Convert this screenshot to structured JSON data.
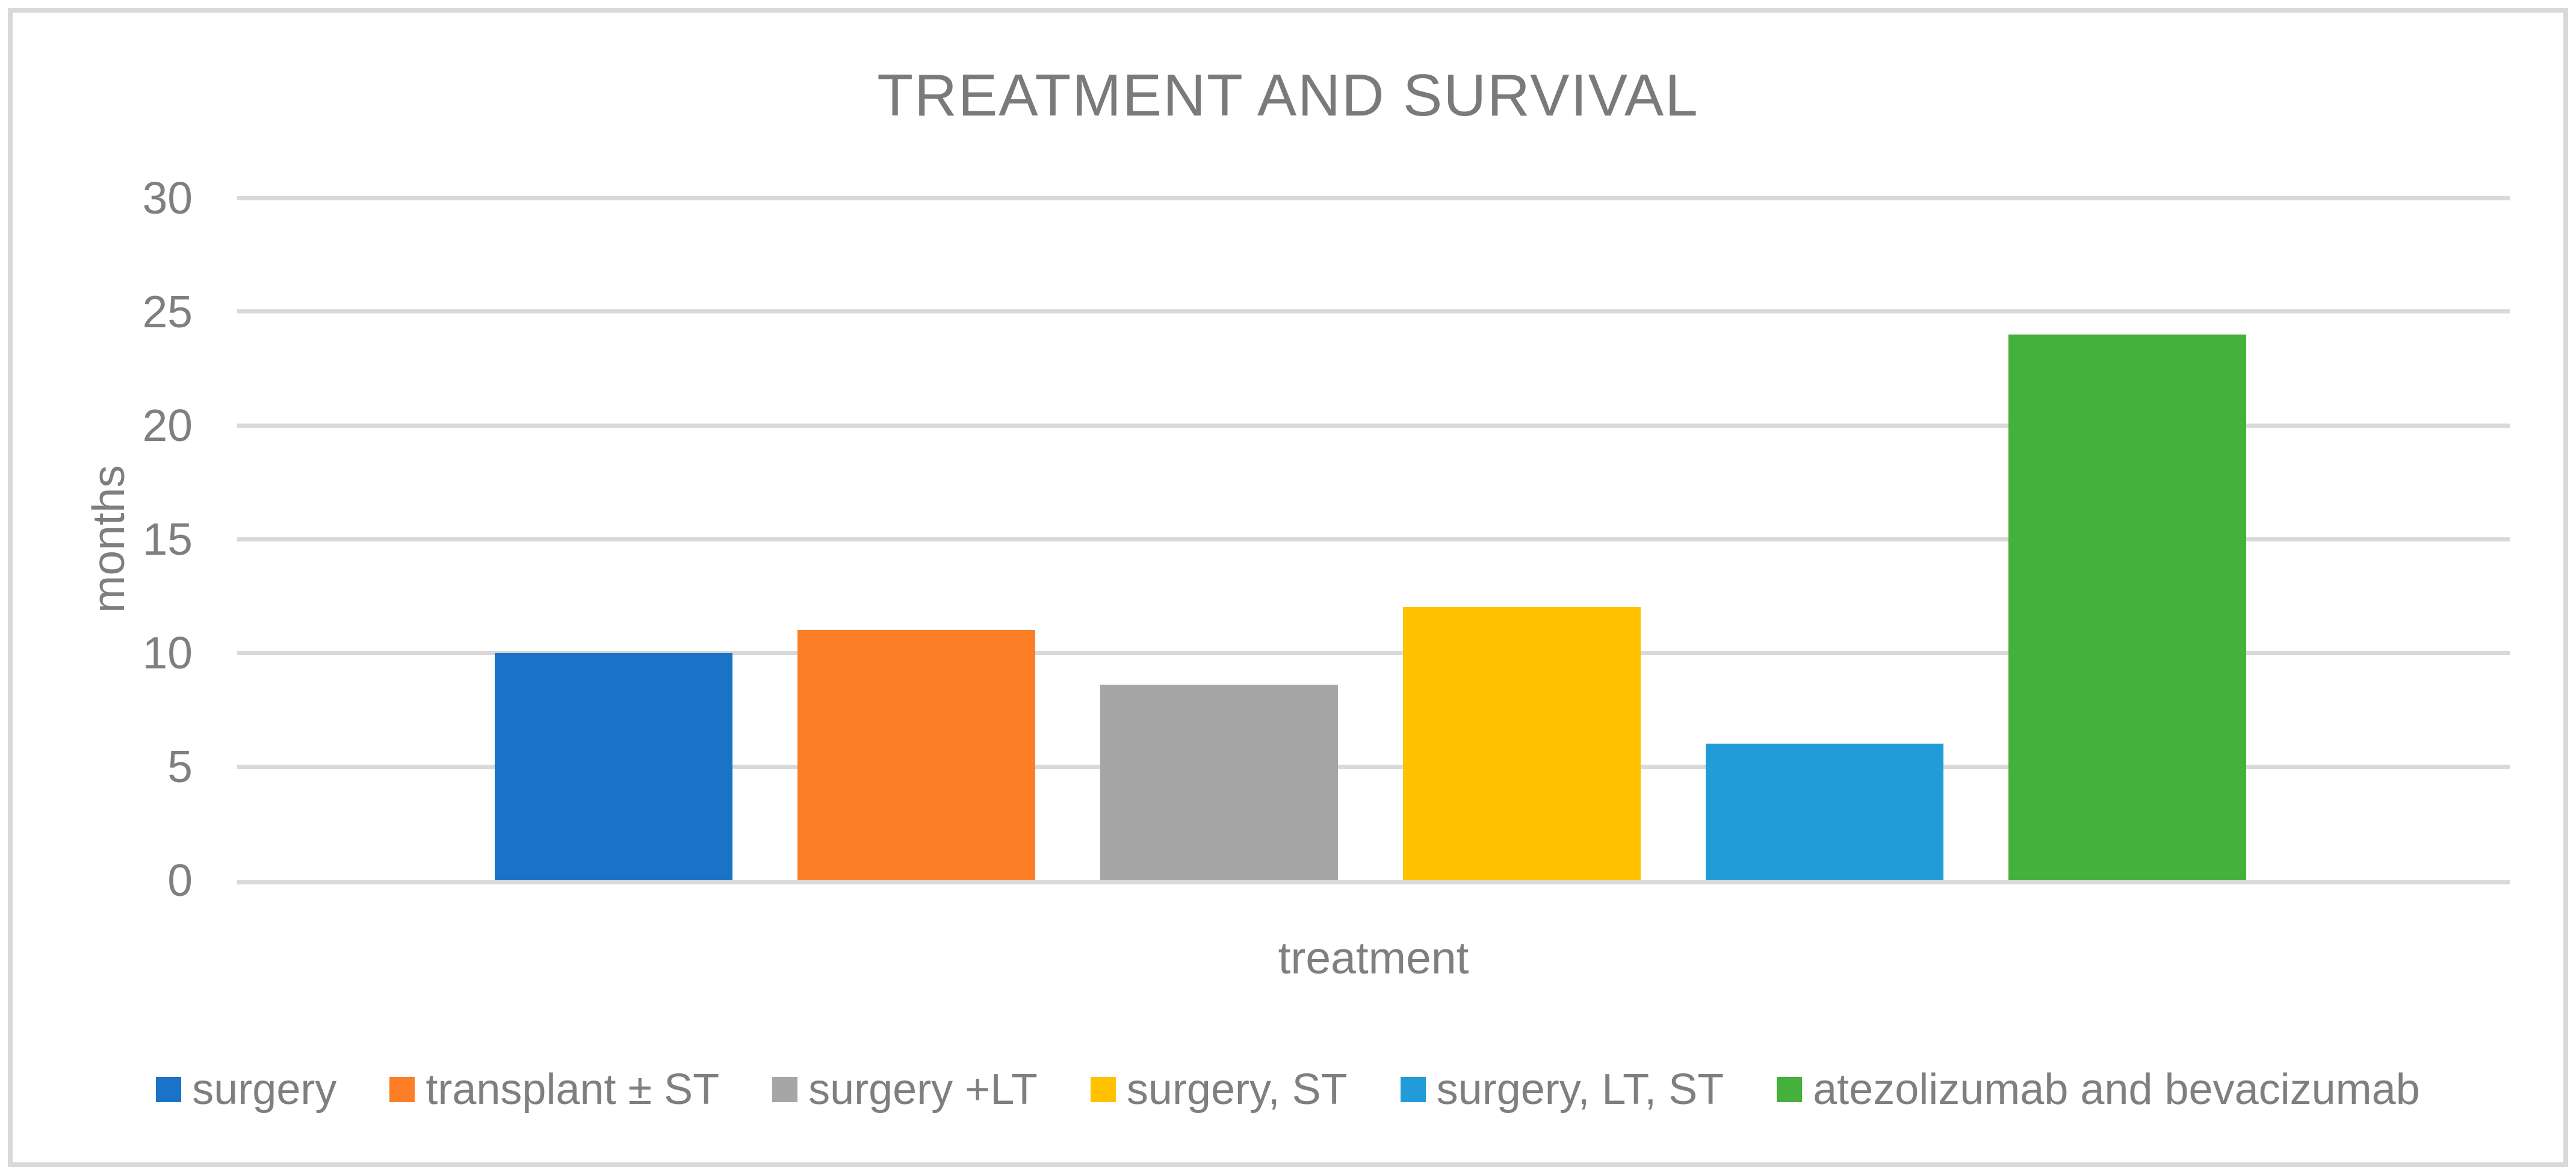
{
  "title": "TREATMENT AND SURVIVAL",
  "chart_data": {
    "type": "bar",
    "title": "TREATMENT AND SURVIVAL",
    "xlabel": "treatment",
    "ylabel": "months",
    "ylim": [
      0,
      30
    ],
    "yticks": [
      0,
      5,
      10,
      15,
      20,
      25,
      30
    ],
    "grid": true,
    "legend_position": "bottom",
    "categories": [
      "surgery",
      "transplant ± ST",
      "surgery +LT",
      "surgery, ST",
      "surgery, LT, ST",
      "atezolizumab and bevacizumab"
    ],
    "values": [
      10,
      11,
      8.6,
      12,
      6,
      24
    ],
    "bar_colors": [
      "#1B73C8",
      "#FC7E26",
      "#A6A6A6",
      "#FFC100",
      "#219CD8",
      "#43B13C"
    ]
  },
  "colors": {
    "text": "#7F7F7F",
    "title_text": "#7A7A7A",
    "gridline": "#D9D9D9",
    "frame_border": "#D9D9D9",
    "background": "#FFFFFF"
  }
}
